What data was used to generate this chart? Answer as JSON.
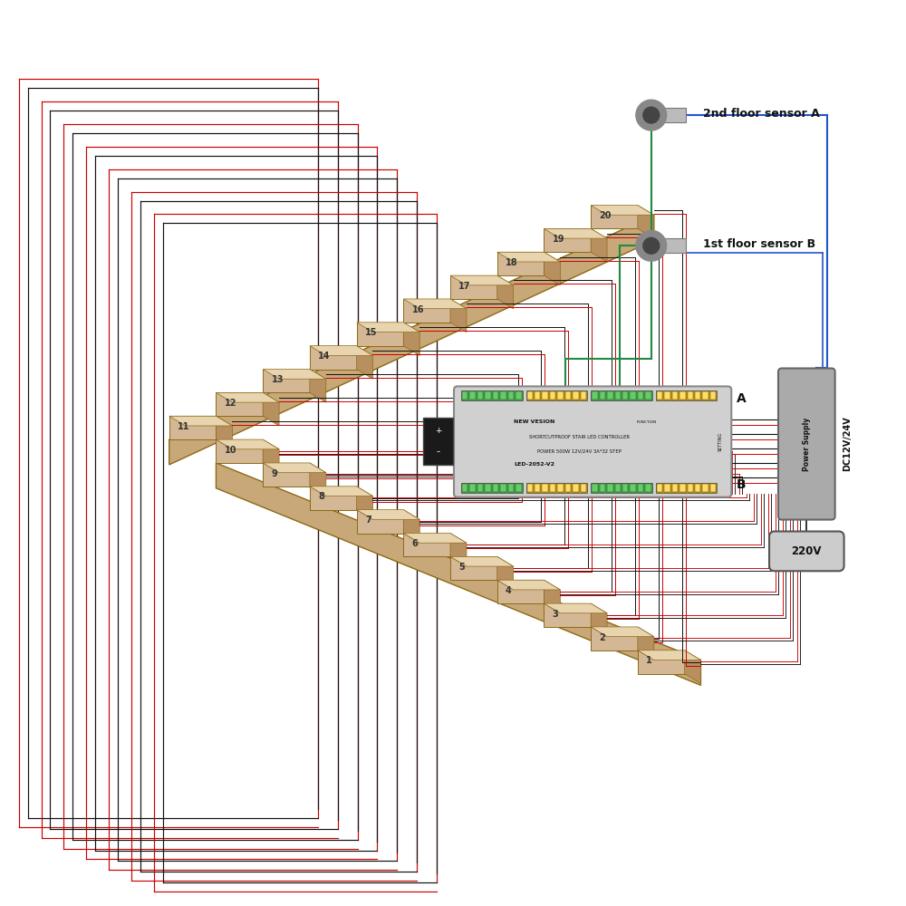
{
  "bg_color": "#ffffff",
  "stair_color": "#d4b896",
  "stair_top_color": "#e8d5b0",
  "stair_side_color": "#b89060",
  "stair_edge_color": "#8B6914",
  "stringer_color": "#c8a878",
  "step_label_color": "#333333",
  "wire_red": "#cc0000",
  "wire_black": "#111111",
  "wire_blue": "#2255cc",
  "wire_green": "#228844",
  "sensor_a_label": "2nd floor sensor A",
  "sensor_b_label": "1st floor sensor B",
  "controller_label1": "NEW VESION",
  "controller_label2": "SHORTCUTPROOF STAIR LED CONTROLLER",
  "controller_label3": "POWER 500W 12V/24V 3A*32 STEP",
  "controller_label4": "LED-2052-V2",
  "controller_label_A": "A",
  "controller_label_B": "B",
  "power_supply_label": "Power Supply",
  "dc_label": "DC12V/24V",
  "voltage_label": "220V",
  "green_connector": "#3daa44",
  "gold_connector": "#cc9900",
  "controller_bg": "#d0d0d0",
  "controller_border": "#888888"
}
